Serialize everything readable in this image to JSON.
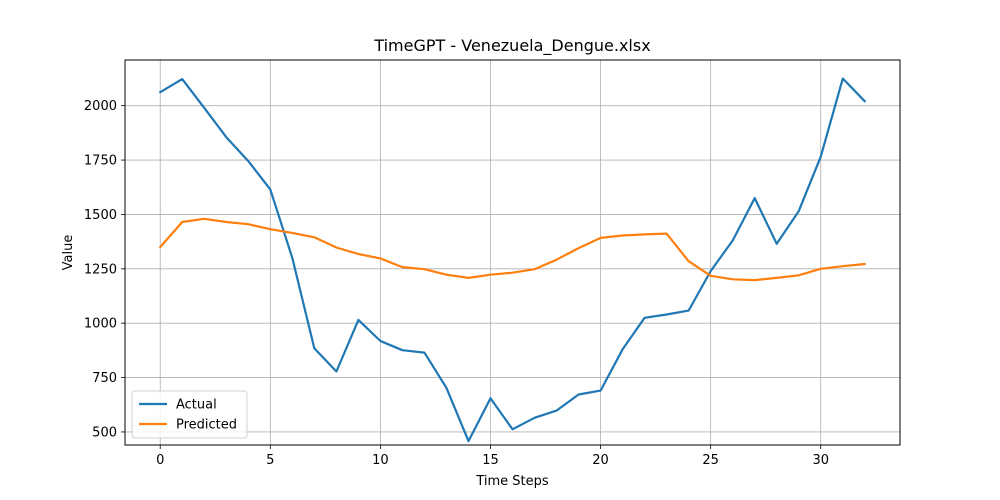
{
  "chart_data": {
    "type": "line",
    "title": "TimeGPT - Venezuela_Dengue.xlsx",
    "xlabel": "Time Steps",
    "ylabel": "Value",
    "xlim": [
      -1.6,
      33.6
    ],
    "ylim": [
      440,
      2210
    ],
    "xticks": [
      0,
      5,
      10,
      15,
      20,
      25,
      30
    ],
    "yticks": [
      500,
      750,
      1000,
      1250,
      1500,
      1750,
      2000
    ],
    "grid": true,
    "legend_position": "lower-left",
    "x": [
      0,
      1,
      2,
      3,
      4,
      5,
      6,
      7,
      8,
      9,
      10,
      11,
      12,
      13,
      14,
      15,
      16,
      17,
      18,
      19,
      20,
      21,
      22,
      23,
      24,
      25,
      26,
      27,
      28,
      29,
      30,
      31,
      32
    ],
    "series": [
      {
        "name": "Actual",
        "color": "#1f77b4",
        "values": [
          2062,
          2122,
          1990,
          1855,
          1745,
          1615,
          1300,
          885,
          778,
          1015,
          918,
          876,
          865,
          703,
          458,
          655,
          512,
          565,
          598,
          672,
          690,
          880,
          1025,
          1040,
          1058,
          1240,
          1380,
          1575,
          1365,
          1515,
          1765,
          2125,
          2020
        ]
      },
      {
        "name": "Predicted",
        "color": "#ff7f0e",
        "values": [
          1350,
          1465,
          1480,
          1465,
          1455,
          1432,
          1415,
          1395,
          1348,
          1318,
          1298,
          1258,
          1248,
          1223,
          1208,
          1223,
          1232,
          1248,
          1292,
          1345,
          1392,
          1403,
          1408,
          1412,
          1285,
          1218,
          1202,
          1198,
          1208,
          1220,
          1250,
          1262,
          1272
        ]
      }
    ]
  }
}
